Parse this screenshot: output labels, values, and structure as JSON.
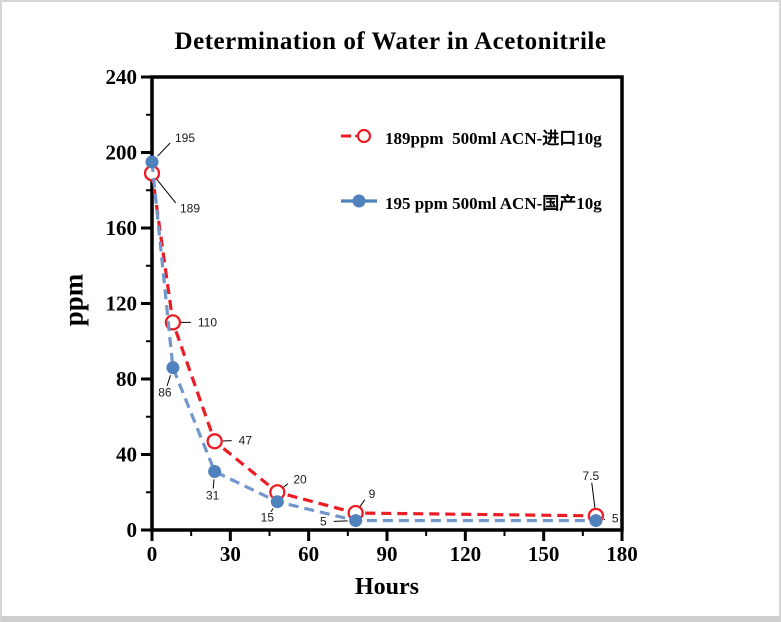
{
  "window": {
    "background": "#ffffff",
    "border_color": "#d6d6d6"
  },
  "chart_data": {
    "type": "line",
    "title": "Determination of Water in Acetonitrile",
    "xlabel": "Hours",
    "ylabel": "ppm",
    "xlim": [
      0,
      180
    ],
    "ylim": [
      0,
      240
    ],
    "x_major_ticks": [
      0,
      30,
      60,
      90,
      120,
      150,
      180
    ],
    "x_minor_tick_step": 15,
    "y_major_ticks": [
      0,
      40,
      80,
      120,
      160,
      200,
      240
    ],
    "y_minor_tick_step": 20,
    "grid": false,
    "frame": "box",
    "legend": {
      "position": "inside-top-right",
      "entries": [
        {
          "label": "189ppm  500ml ACN-进口10g",
          "marker": "dashed-line-open-circle",
          "color": "#EC1C24"
        },
        {
          "label": "195 ppm 500ml ACN-国产10g",
          "marker": "solid-line-filled-circle",
          "color": "#4F81BD"
        }
      ]
    },
    "series": [
      {
        "name": "189ppm  500ml ACN-进口10g",
        "line_style": "dashed",
        "line_color": "#EC1C24",
        "marker": "open",
        "marker_color": "#EC1C24",
        "marker_fill": "#ffffff",
        "x": [
          0,
          8,
          24,
          48,
          78,
          170
        ],
        "y": [
          189,
          110,
          47,
          20,
          9,
          7.5
        ],
        "point_labels": [
          "189",
          "110",
          "47",
          "20",
          "9",
          "7.5"
        ]
      },
      {
        "name": "195 ppm 500ml ACN-国产10g",
        "line_style": "dashed",
        "line_color": "#7396CC",
        "marker": "filled",
        "marker_color": "#4F81BD",
        "marker_fill": "#4F81BD",
        "x": [
          0,
          8,
          24,
          48,
          78,
          170
        ],
        "y": [
          195,
          86,
          31,
          15,
          5,
          5
        ],
        "point_labels": [
          "195",
          "86",
          "31",
          "15",
          "5",
          "5"
        ]
      }
    ]
  }
}
